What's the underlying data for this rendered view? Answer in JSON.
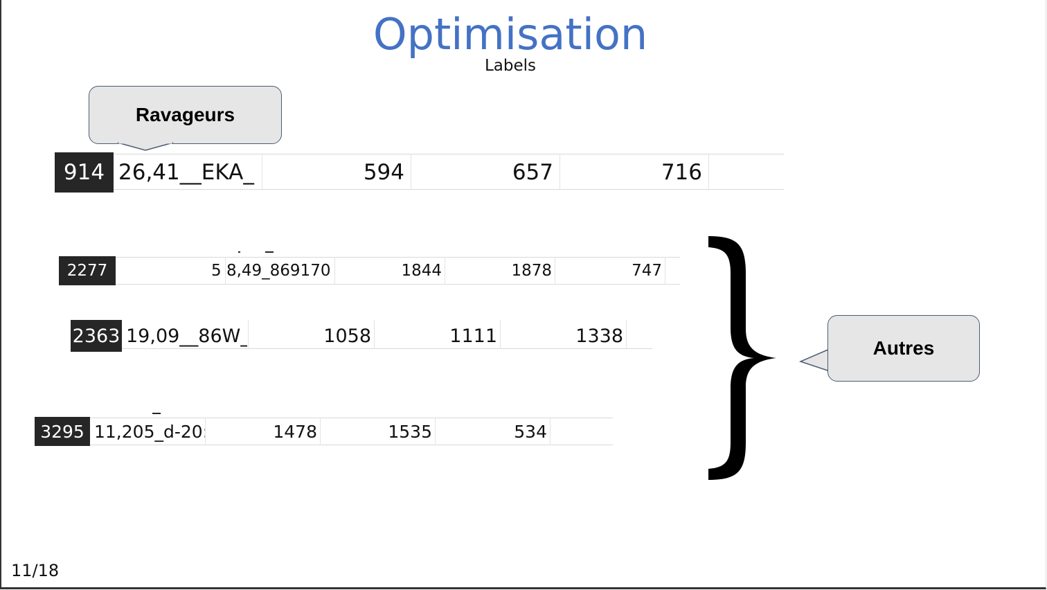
{
  "slide": {
    "title": "Optimisation",
    "subtitle": "Labels",
    "page_number": "11/18",
    "title_color": "#4472c4"
  },
  "callouts": {
    "ravageurs": "Ravageurs",
    "autres": "Autres"
  },
  "rows": [
    {
      "id": "914",
      "label": "26,41__EKA_",
      "values": [
        "594",
        "657",
        "716"
      ]
    },
    {
      "id": "2277",
      "label": "5 8,49_869170",
      "values": [
        "1844",
        "1878",
        "747"
      ]
    },
    {
      "id": "2363",
      "label": "19,09__86W_",
      "values": [
        "1058",
        "1111",
        "1338"
      ]
    },
    {
      "id": "3295",
      "label": "11,205_d-20:",
      "values": [
        "1478",
        "1535",
        "534"
      ]
    }
  ],
  "brace_icon": "right-curly-brace"
}
